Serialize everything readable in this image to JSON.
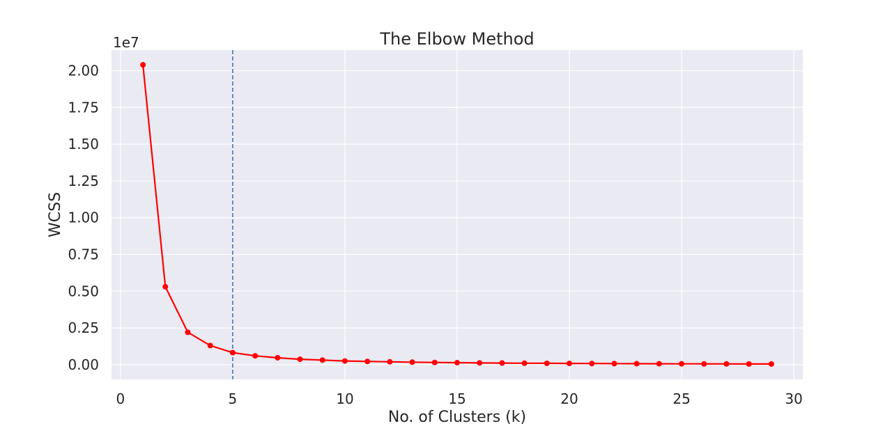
{
  "chart_data": {
    "type": "line",
    "title": "The Elbow Method",
    "xlabel": "No. of Clusters (k)",
    "ylabel": "WCSS",
    "offset_text": "1e7",
    "x": [
      1,
      2,
      3,
      4,
      5,
      6,
      7,
      8,
      9,
      10,
      11,
      12,
      13,
      14,
      15,
      16,
      17,
      18,
      19,
      20,
      21,
      22,
      23,
      24,
      25,
      26,
      27,
      28,
      29
    ],
    "series": [
      {
        "color": "#ff0000",
        "marker": "circle",
        "values": [
          20400000,
          5300000,
          2200000,
          1300000,
          820000,
          600000,
          470000,
          370000,
          310000,
          250000,
          220000,
          195000,
          170000,
          150000,
          135000,
          120000,
          110000,
          100000,
          92000,
          85000,
          78000,
          72000,
          67000,
          62000,
          58000,
          54000,
          51000,
          48000,
          45000
        ]
      }
    ],
    "xlim": [
      -0.4,
      30.4
    ],
    "ylim": [
      -1000000,
      21400000
    ],
    "xticks": [
      0,
      5,
      10,
      15,
      20,
      25,
      30
    ],
    "yticks": [
      0,
      2500000,
      5000000,
      7500000,
      10000000,
      12500000,
      15000000,
      17500000,
      20000000
    ],
    "ytick_labels": [
      "0.00",
      "0.25",
      "0.50",
      "0.75",
      "1.00",
      "1.25",
      "1.50",
      "1.75",
      "2.00"
    ],
    "xtick_labels": [
      "0",
      "5",
      "10",
      "15",
      "20",
      "25",
      "30"
    ],
    "vline": {
      "x": 5,
      "color": "#4c72b0",
      "style": "dashed"
    },
    "grid": true,
    "background": "#eaeaf2"
  }
}
